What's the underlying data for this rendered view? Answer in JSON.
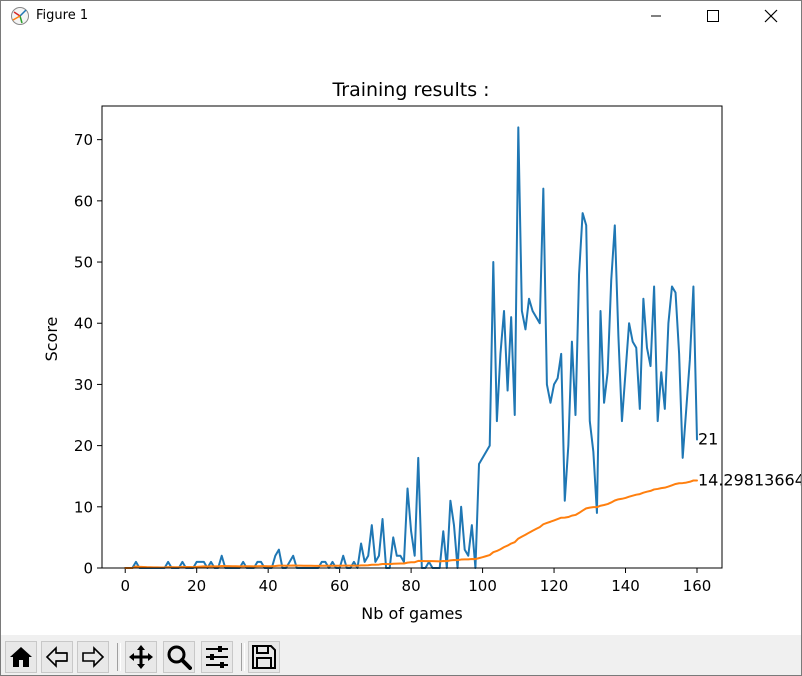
{
  "window": {
    "title": "Figure 1",
    "icons": [
      "figure-app-icon",
      "minimize-icon",
      "maximize-icon",
      "close-icon"
    ]
  },
  "toolbar": {
    "icons": [
      "home-icon",
      "back-arrow-icon",
      "forward-arrow-icon",
      "pan-icon",
      "zoom-icon",
      "configure-subplots-icon",
      "save-icon"
    ]
  },
  "chart_data": {
    "type": "line",
    "title": "Training results :",
    "xlabel": "Nb of games",
    "ylabel": "Score",
    "xlim": [
      -6.5,
      167
    ],
    "ylim": [
      0,
      75.5
    ],
    "xticks": [
      0,
      20,
      40,
      60,
      80,
      100,
      120,
      140,
      160
    ],
    "yticks": [
      0,
      10,
      20,
      30,
      40,
      50,
      60,
      70
    ],
    "grid": false,
    "colors": {
      "score": "#1f77b4",
      "mean": "#ff7f0e"
    },
    "series": [
      {
        "key": "score",
        "x_start": 0,
        "values": [
          0,
          0,
          0,
          1,
          0,
          0,
          0,
          0,
          0,
          0,
          0,
          0,
          1,
          0,
          0,
          0,
          1,
          0,
          0,
          0,
          1,
          1,
          1,
          0,
          1,
          0,
          0,
          2,
          0,
          0,
          0,
          0,
          0,
          1,
          0,
          0,
          0,
          1,
          1,
          0,
          0,
          0,
          2,
          3,
          0,
          0,
          1,
          2,
          0,
          0,
          0,
          0,
          0,
          0,
          0,
          1,
          1,
          0,
          1,
          0,
          0,
          2,
          0,
          0,
          1,
          0,
          4,
          1,
          2,
          7,
          1,
          2,
          8,
          0,
          0,
          5,
          2,
          2,
          1,
          13,
          6,
          2,
          18,
          0,
          0,
          1,
          0,
          0,
          0,
          6,
          0,
          11,
          7,
          0,
          10,
          3,
          2,
          7,
          0,
          17,
          18,
          19,
          20,
          50,
          24,
          35,
          42,
          29,
          41,
          25,
          72,
          42,
          39,
          44,
          42,
          41,
          40,
          62,
          30,
          27,
          30,
          31,
          35,
          11,
          20,
          37,
          25,
          48,
          58,
          56,
          24,
          19,
          9,
          42,
          27,
          32,
          47,
          56,
          38,
          24,
          32,
          40,
          37,
          36,
          26,
          44,
          36,
          33,
          46,
          24,
          32,
          26,
          40,
          46,
          45,
          35,
          18,
          26,
          34,
          46,
          21
        ],
        "end_label": "21"
      },
      {
        "key": "mean",
        "x_start": 0,
        "values": [
          0,
          0,
          0,
          0.25,
          0.2,
          0.17,
          0.14,
          0.13,
          0.11,
          0.1,
          0.09,
          0.08,
          0.15,
          0.14,
          0.13,
          0.13,
          0.18,
          0.17,
          0.16,
          0.15,
          0.19,
          0.23,
          0.26,
          0.25,
          0.28,
          0.27,
          0.26,
          0.32,
          0.31,
          0.3,
          0.29,
          0.28,
          0.27,
          0.29,
          0.29,
          0.28,
          0.27,
          0.29,
          0.31,
          0.3,
          0.29,
          0.29,
          0.33,
          0.39,
          0.38,
          0.37,
          0.38,
          0.4,
          0.39,
          0.38,
          0.37,
          0.37,
          0.36,
          0.35,
          0.35,
          0.36,
          0.37,
          0.36,
          0.37,
          0.37,
          0.36,
          0.39,
          0.38,
          0.38,
          0.38,
          0.37,
          0.42,
          0.43,
          0.45,
          0.54,
          0.54,
          0.56,
          0.66,
          0.65,
          0.64,
          0.7,
          0.71,
          0.73,
          0.73,
          0.88,
          0.94,
          0.95,
          1.16,
          1.14,
          1.13,
          1.13,
          1.12,
          1.1,
          1.09,
          1.14,
          1.13,
          1.24,
          1.3,
          1.29,
          1.38,
          1.4,
          1.41,
          1.47,
          1.46,
          1.61,
          1.77,
          1.94,
          2.11,
          2.58,
          2.78,
          3.07,
          3.41,
          3.66,
          4.0,
          4.21,
          4.81,
          5.13,
          5.43,
          5.77,
          6.09,
          6.39,
          6.68,
          7.15,
          7.37,
          7.56,
          7.77,
          7.99,
          8.22,
          8.23,
          8.33,
          8.56,
          8.67,
          9.0,
          9.39,
          9.75,
          9.87,
          9.94,
          9.94,
          10.18,
          10.3,
          10.45,
          10.71,
          11.03,
          11.22,
          11.31,
          11.45,
          11.65,
          11.82,
          11.98,
          12.08,
          12.31,
          12.47,
          12.6,
          12.84,
          12.92,
          13.05,
          13.13,
          13.31,
          13.52,
          13.73,
          13.85,
          13.88,
          13.96,
          14.09,
          14.3,
          14.3
        ],
        "end_label": "14.29813664"
      }
    ]
  }
}
